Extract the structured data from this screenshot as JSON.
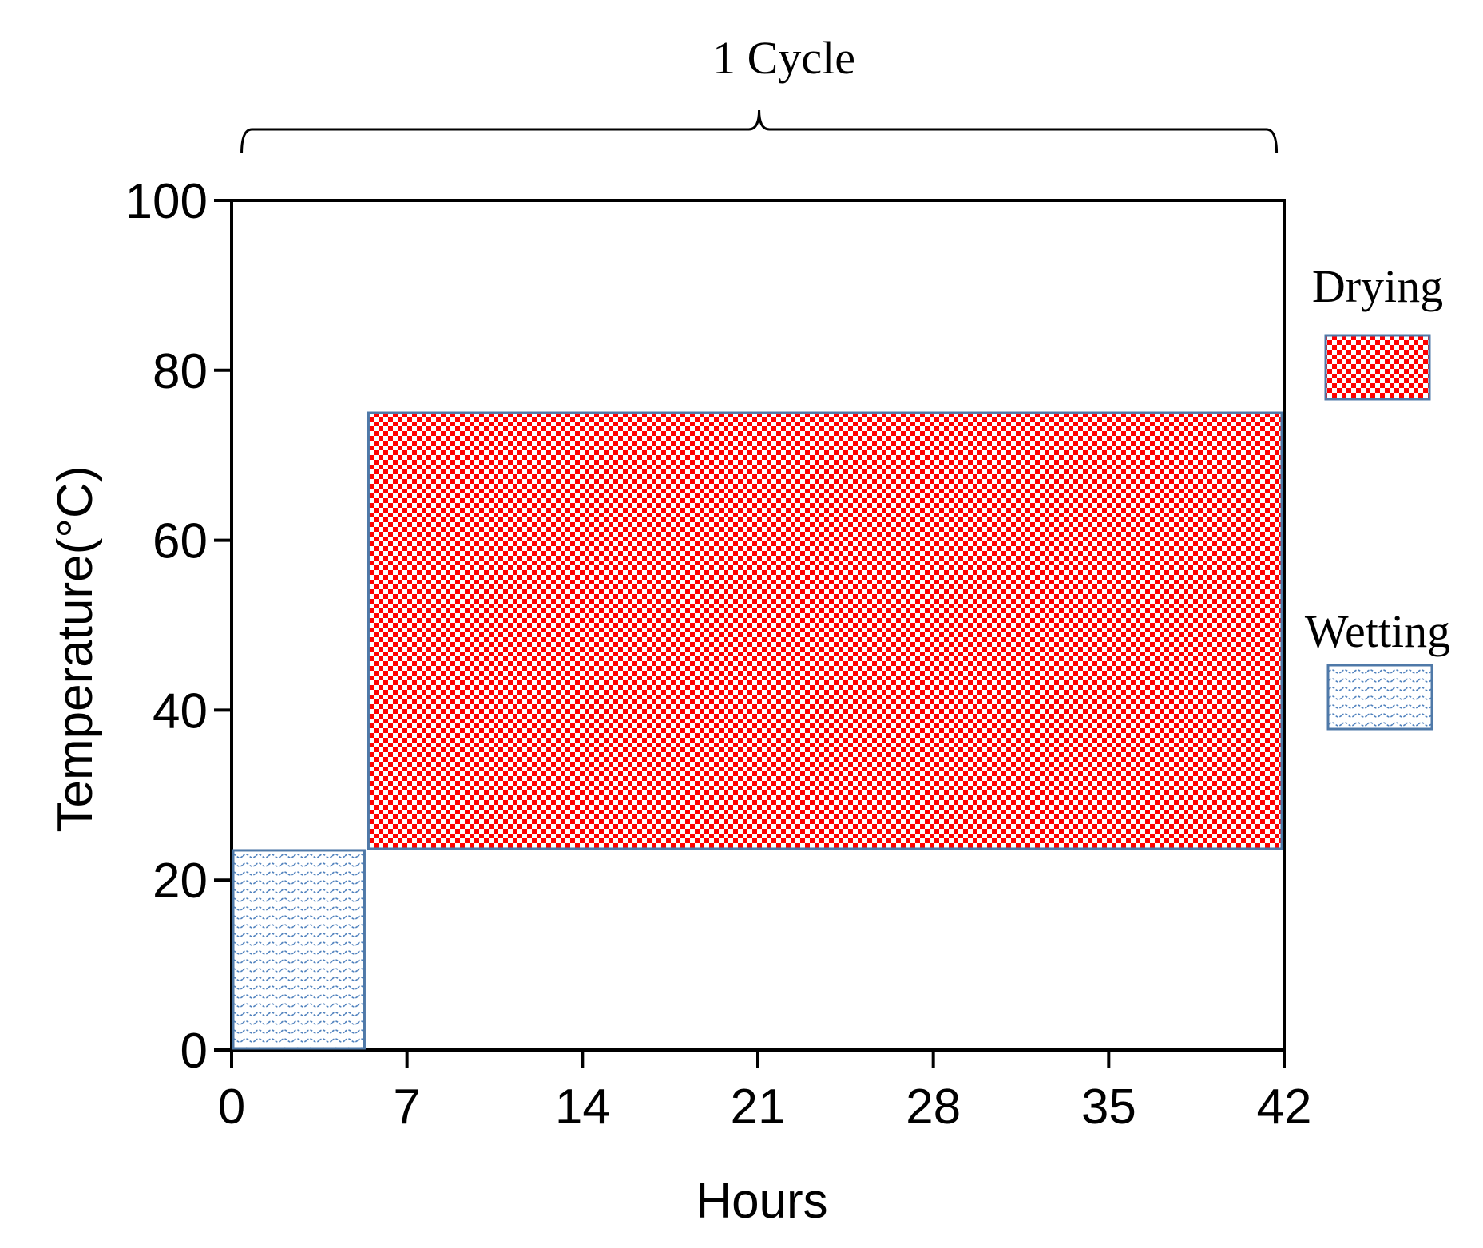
{
  "chart_data": {
    "type": "bar",
    "subtype": "floating-range-rectangles",
    "xlabel": "Hours",
    "ylabel": "Temperature(°C)",
    "xlim": [
      0,
      42
    ],
    "ylim": [
      0,
      100
    ],
    "xticks": [
      0,
      7,
      14,
      21,
      28,
      35,
      42
    ],
    "yticks": [
      0,
      20,
      40,
      60,
      80,
      100
    ],
    "grid": false,
    "legend_position": "right",
    "series": [
      {
        "name": "Drying",
        "x_start": 5.4,
        "x_end": 42,
        "y_low": 23.5,
        "y_high": 75,
        "fill": "#ff0000",
        "pattern": "checker"
      },
      {
        "name": "Wetting",
        "x_start": 0,
        "x_end": 5.4,
        "y_low": 0,
        "y_high": 23.5,
        "fill": "#4f81bd",
        "pattern": "waves"
      }
    ],
    "annotation": {
      "text": "1 Cycle",
      "x_start": 0.4,
      "x_end": 41.7
    },
    "colors": {
      "axis": "#000000",
      "box_border": "#4f79a8",
      "drying": "#ff0000",
      "wetting": "#4f81bd"
    }
  }
}
